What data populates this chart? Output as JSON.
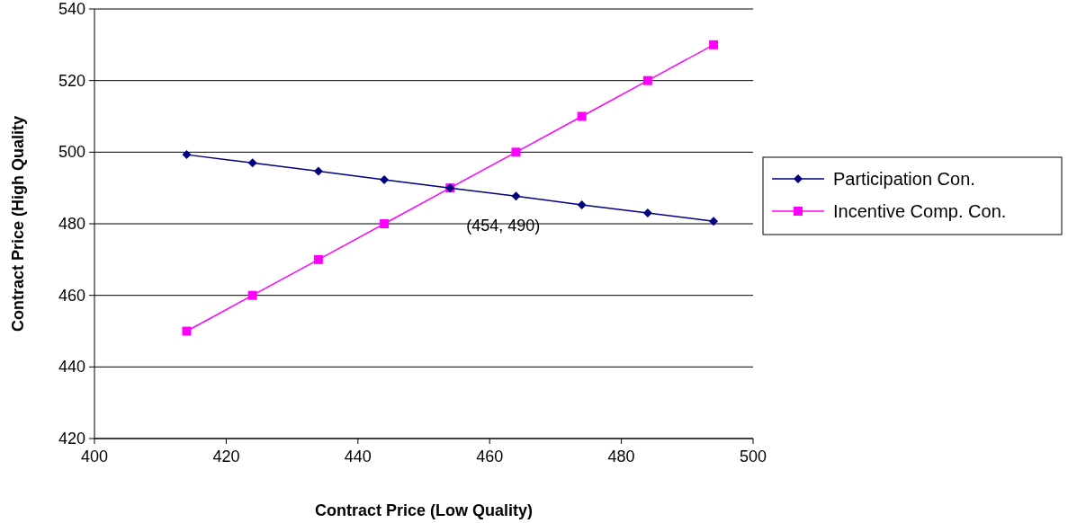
{
  "chart_data": {
    "type": "line",
    "xlabel": "Contract Price (Low Quality)",
    "ylabel": "Contract Price (High Quality",
    "x": [
      414,
      424,
      434,
      444,
      454,
      464,
      474,
      484,
      494
    ],
    "series": [
      {
        "name": "Participation Con.",
        "color": "#000080",
        "marker": "diamond",
        "values": [
          499.3,
          497,
          494.7,
          492.3,
          490,
          487.7,
          485.3,
          483,
          480.7
        ]
      },
      {
        "name": "Incentive Comp. Con.",
        "color": "#ff00ff",
        "marker": "square",
        "values": [
          450,
          460,
          470,
          480,
          490,
          500,
          510,
          520,
          530
        ]
      }
    ],
    "xlim": [
      400,
      500
    ],
    "xticks": [
      400,
      420,
      440,
      460,
      480,
      500
    ],
    "ylim": [
      420,
      540
    ],
    "yticks": [
      420,
      440,
      460,
      480,
      500,
      520,
      540
    ],
    "grid": "y",
    "legend": "right",
    "line_style": "solid",
    "annotations": [
      {
        "text": "(454, 490)",
        "x": 454,
        "y": 490
      }
    ]
  }
}
